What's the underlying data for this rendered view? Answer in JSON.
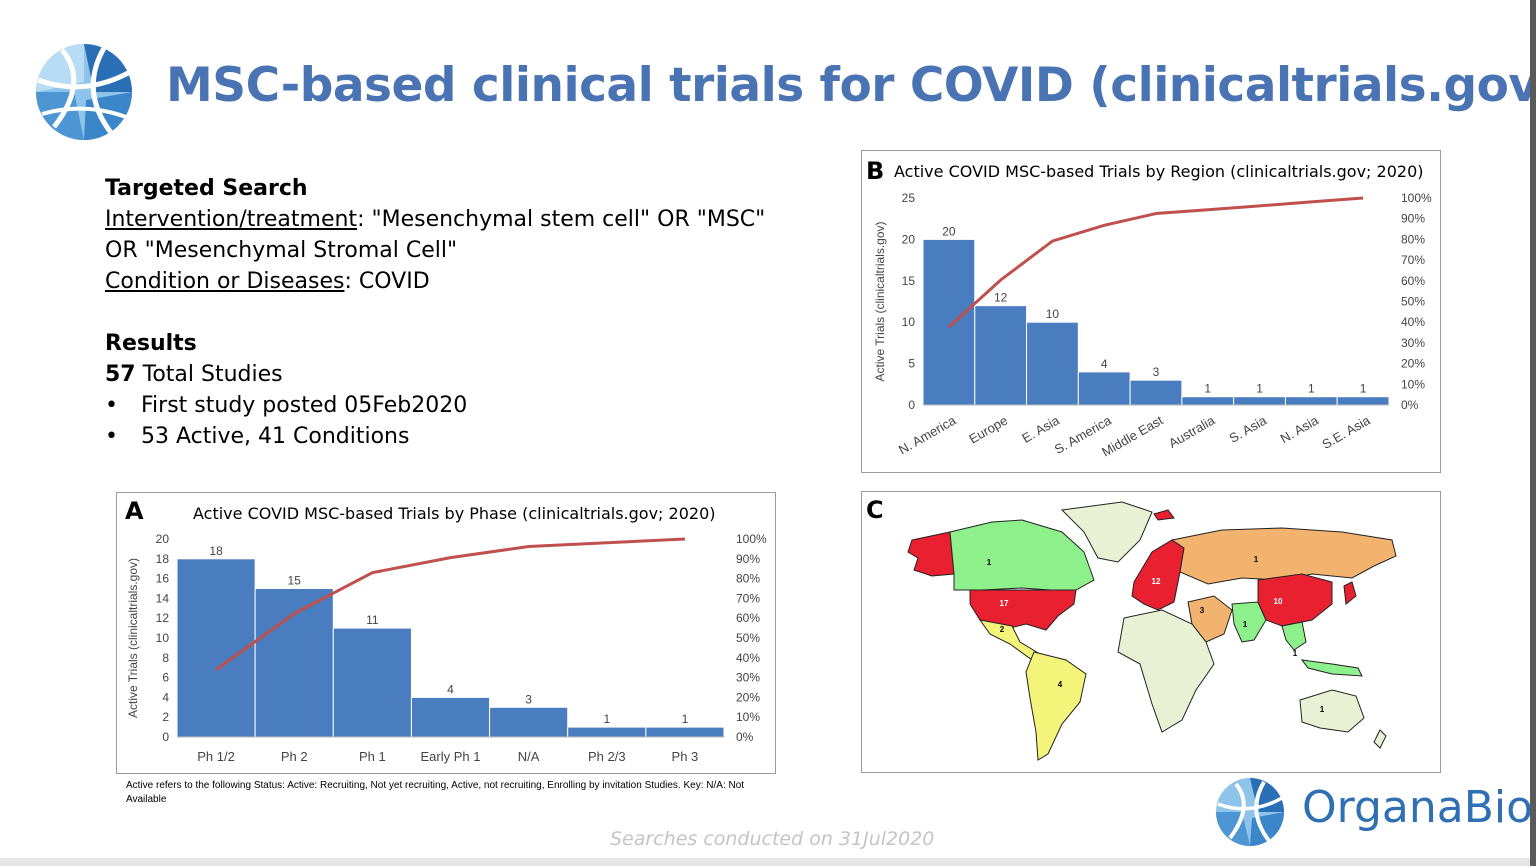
{
  "title": "MSC-based clinical trials for COVID (clinicaltrials.gov)",
  "search": {
    "heading": "Targeted Search",
    "intervention_label": "Intervention/treatment",
    "intervention_value": ": \"Mesenchymal stem cell\" OR \"MSC\"",
    "intervention_value_2": "OR \"Mesenchymal Stromal Cell\"",
    "condition_label": "Condition or Diseases",
    "condition_value": ": COVID"
  },
  "results": {
    "heading": "Results",
    "total_number": "57",
    "total_text": " Total Studies",
    "bullet_symbol": "•",
    "bullets": [
      "First study posted 05Feb2020",
      "53 Active, 41 Conditions"
    ]
  },
  "panels": {
    "a": "A",
    "b": "B",
    "c": "C"
  },
  "chart_data": [
    {
      "type": "bar",
      "title": "Active COVID MSC-based Trials by Phase (clinicaltrials.gov; 2020)",
      "ylabel": "Active Trials (clinicaltrials.gov)",
      "categories": [
        "Ph 1/2",
        "Ph 2",
        "Ph 1",
        "Early Ph 1",
        "N/A",
        "Ph 2/3",
        "Ph 3"
      ],
      "values": [
        18,
        15,
        11,
        4,
        3,
        1,
        1
      ],
      "ylim": [
        0,
        20
      ],
      "yticks": [
        "0",
        "2",
        "4",
        "6",
        "8",
        "10",
        "12",
        "14",
        "16",
        "18",
        "20"
      ],
      "y2ticks": [
        "0%",
        "10%",
        "20%",
        "30%",
        "40%",
        "50%",
        "60%",
        "70%",
        "80%",
        "90%",
        "100%"
      ],
      "cumulative_percent": [
        34,
        62.3,
        83,
        90.6,
        96.2,
        98.1,
        100
      ],
      "bar_color": "#4a7cc0",
      "line_color": "#c0504d"
    },
    {
      "type": "bar",
      "title": "Active COVID MSC-based Trials by Region (clinicaltrials.gov; 2020)",
      "ylabel": "Active Trials (clinicaltrials.gov)",
      "categories": [
        "N. America",
        "Europe",
        "E. Asia",
        "S. America",
        "Middle East",
        "Australia",
        "S. Asia",
        "N. Asia",
        "S.E. Asia"
      ],
      "values": [
        20,
        12,
        10,
        4,
        3,
        1,
        1,
        1,
        1
      ],
      "ylim": [
        0,
        25
      ],
      "yticks": [
        "0",
        "5",
        "10",
        "15",
        "20",
        "25"
      ],
      "y2ticks": [
        "0%",
        "10%",
        "20%",
        "30%",
        "40%",
        "50%",
        "60%",
        "70%",
        "80%",
        "90%",
        "100%"
      ],
      "cumulative_percent": [
        37.7,
        60.4,
        79.2,
        86.8,
        92.5,
        94.3,
        96.2,
        98.1,
        100
      ],
      "bar_color": "#4a7cc0",
      "line_color": "#c0504d"
    }
  ],
  "map": {
    "labels": [
      "1",
      "17",
      "2",
      "4",
      "12",
      "3",
      "1",
      "10",
      "1",
      "1",
      "1"
    ],
    "colors": {
      "high": "#e8202f",
      "mid": "#f2b36f",
      "low": "#8ef08a",
      "lowest": "#f4f47a",
      "none": "#e8f1d3"
    }
  },
  "footnote": "Active refers to the following Status: Active: Recruiting, Not yet recruiting, Active, not recruiting, Enrolling by invitation Studies. Key: N/A: Not Available",
  "searched": "Searches conducted on 31Jul2020",
  "brand": "OrganaBio"
}
